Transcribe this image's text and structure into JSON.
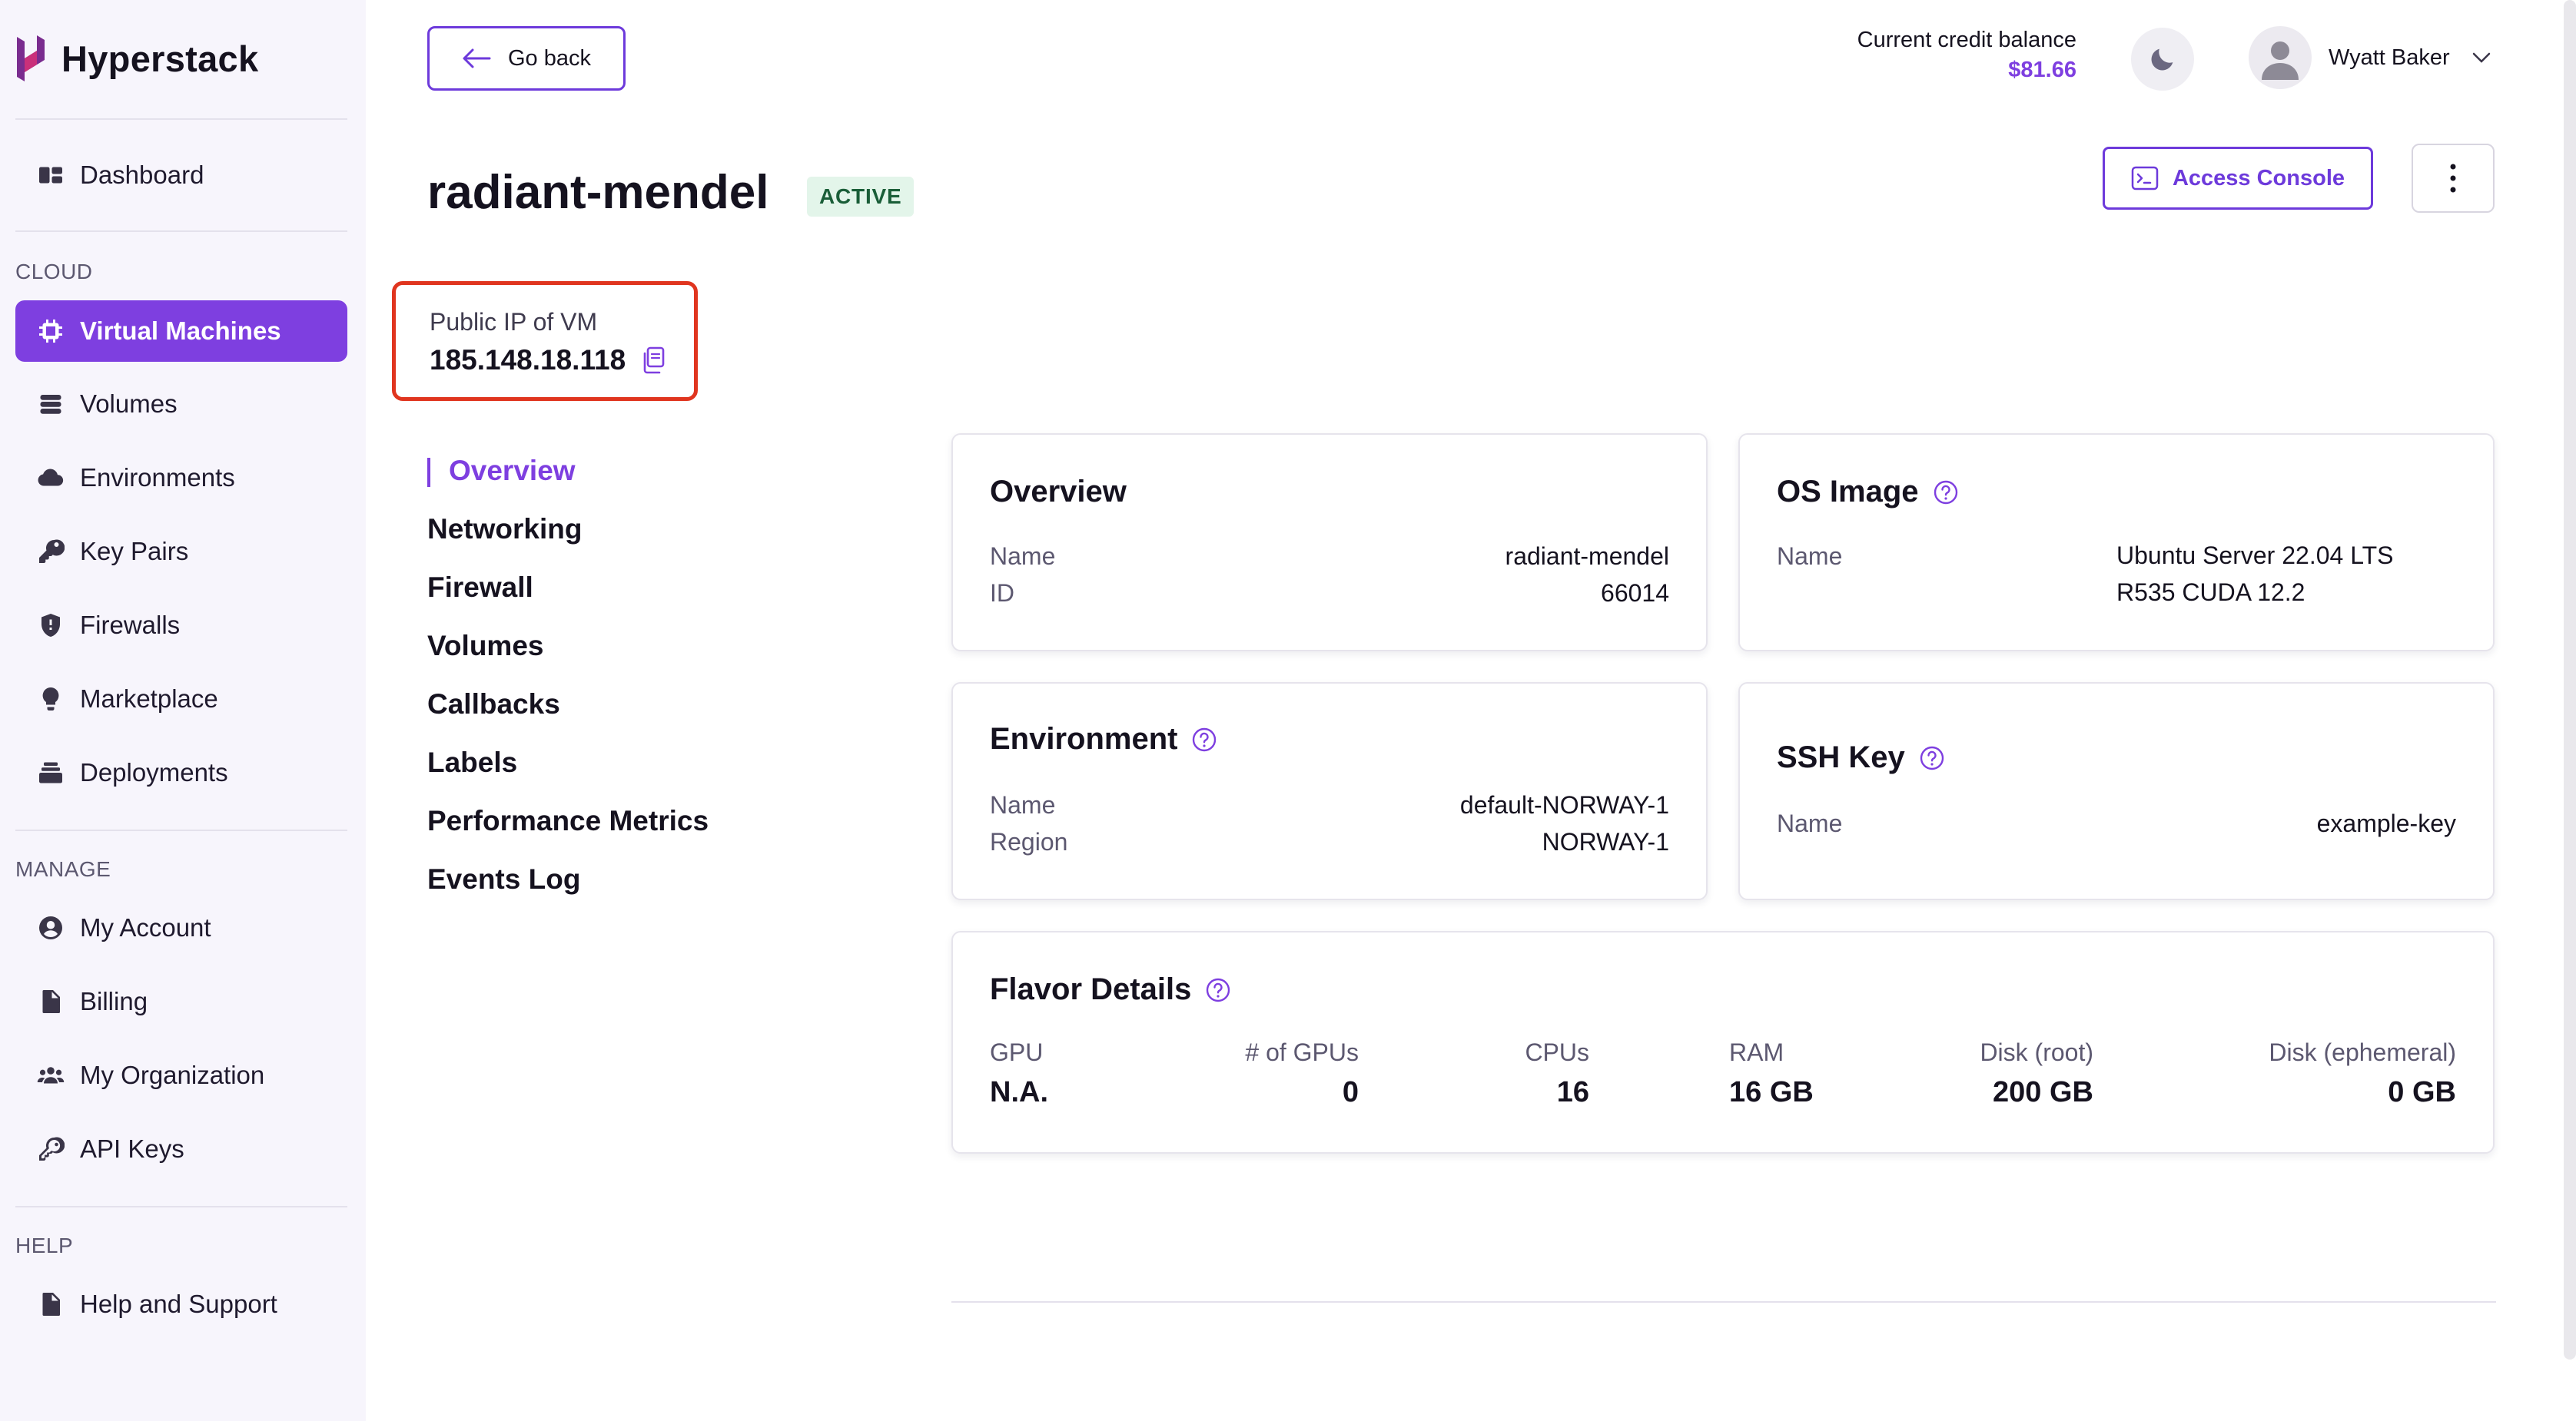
{
  "app": {
    "name": "Hyperstack"
  },
  "sidebar": {
    "top_items": [
      {
        "label": "Dashboard",
        "icon": "dashboard-icon"
      }
    ],
    "sections": [
      {
        "label": "CLOUD",
        "items": [
          {
            "label": "Virtual Machines",
            "icon": "chip-icon",
            "active": true
          },
          {
            "label": "Volumes",
            "icon": "database-icon"
          },
          {
            "label": "Environments",
            "icon": "cloud-icon"
          },
          {
            "label": "Key Pairs",
            "icon": "key-icon"
          },
          {
            "label": "Firewalls",
            "icon": "shield-icon"
          },
          {
            "label": "Marketplace",
            "icon": "bulb-icon"
          },
          {
            "label": "Deployments",
            "icon": "stack-icon"
          }
        ]
      },
      {
        "label": "MANAGE",
        "items": [
          {
            "label": "My Account",
            "icon": "user-circle-icon"
          },
          {
            "label": "Billing",
            "icon": "document-icon"
          },
          {
            "label": "My Organization",
            "icon": "users-icon"
          },
          {
            "label": "API Keys",
            "icon": "key-outline-icon"
          }
        ]
      },
      {
        "label": "HELP",
        "items": [
          {
            "label": "Help and Support",
            "icon": "document-icon"
          }
        ]
      }
    ]
  },
  "header": {
    "go_back_label": "Go back",
    "credit_label": "Current credit balance",
    "credit_value": "$81.66",
    "user_name": "Wyatt Baker"
  },
  "vm": {
    "name": "radiant-mendel",
    "status": "ACTIVE",
    "ip_label": "Public IP of VM",
    "ip_value": "185.148.18.118",
    "access_console_label": "Access Console"
  },
  "tabs": [
    "Overview",
    "Networking",
    "Firewall",
    "Volumes",
    "Callbacks",
    "Labels",
    "Performance Metrics",
    "Events Log"
  ],
  "cards": {
    "overview": {
      "title": "Overview",
      "name_label": "Name",
      "name_value": "radiant-mendel",
      "id_label": "ID",
      "id_value": "66014"
    },
    "os_image": {
      "title": "OS Image",
      "name_label": "Name",
      "name_value_line1": "Ubuntu Server 22.04 LTS",
      "name_value_line2": "R535 CUDA 12.2"
    },
    "environment": {
      "title": "Environment",
      "name_label": "Name",
      "name_value": "default-NORWAY-1",
      "region_label": "Region",
      "region_value": "NORWAY-1"
    },
    "ssh_key": {
      "title": "SSH Key",
      "name_label": "Name",
      "name_value": "example-key"
    },
    "flavor": {
      "title": "Flavor Details",
      "columns": [
        {
          "label": "GPU",
          "value": "N.A."
        },
        {
          "label": "# of GPUs",
          "value": "0"
        },
        {
          "label": "CPUs",
          "value": "16"
        },
        {
          "label": "RAM",
          "value": "16 GB"
        },
        {
          "label": "Disk (root)",
          "value": "200 GB"
        },
        {
          "label": "Disk (ephemeral)",
          "value": "0 GB"
        }
      ]
    }
  },
  "colors": {
    "accent": "#7e3fe0",
    "highlight_border": "#e0351f",
    "status_bg": "#e3f5ea",
    "status_text": "#1a5e38"
  }
}
